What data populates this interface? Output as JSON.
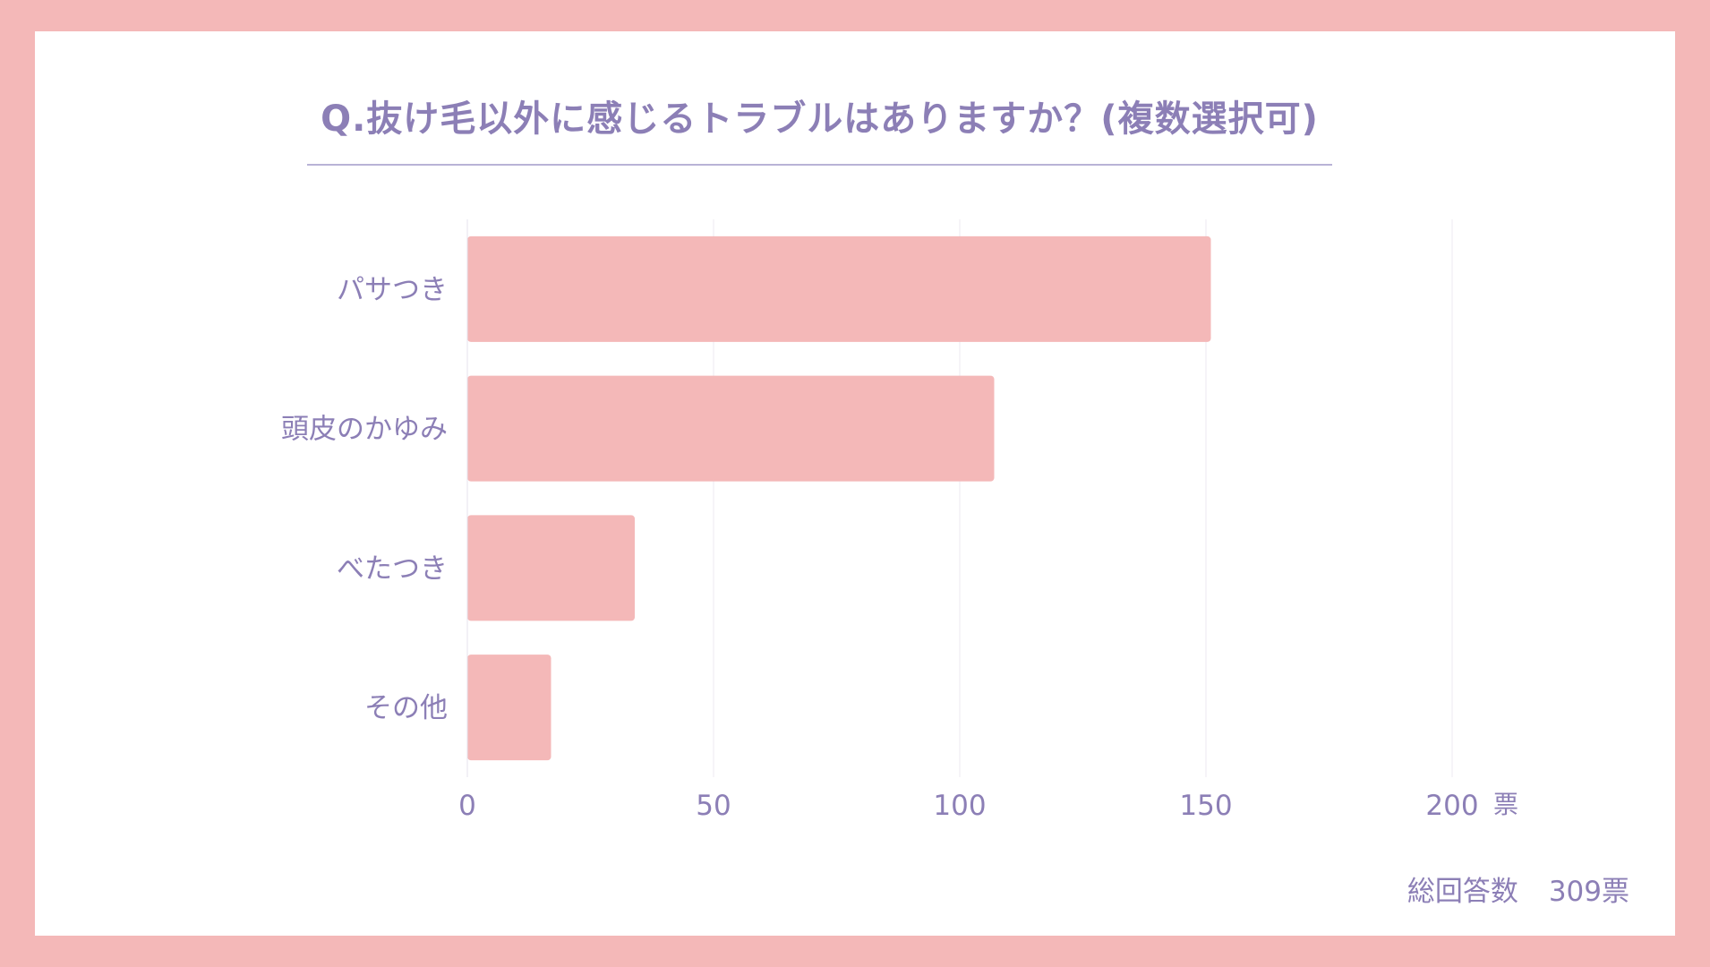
{
  "chart_data": {
    "type": "bar",
    "orientation": "horizontal",
    "title": "Q.抜け毛以外に感じるトラブルはありますか？(複数選択可)",
    "categories": [
      "パサつき",
      "頭皮のかゆみ",
      "べたつき",
      "その他"
    ],
    "values": [
      151,
      107,
      34,
      17
    ],
    "xlim": [
      0,
      200
    ],
    "xticks": [
      "0",
      "50",
      "100",
      "150",
      "200"
    ],
    "xunit": "票",
    "grid": true,
    "bar_color": "#f4b8b8",
    "text_color": "#8c7fb6",
    "grid_color": "#eceaf1"
  },
  "footer": {
    "total_label": "総回答数",
    "total_value": "309票"
  }
}
